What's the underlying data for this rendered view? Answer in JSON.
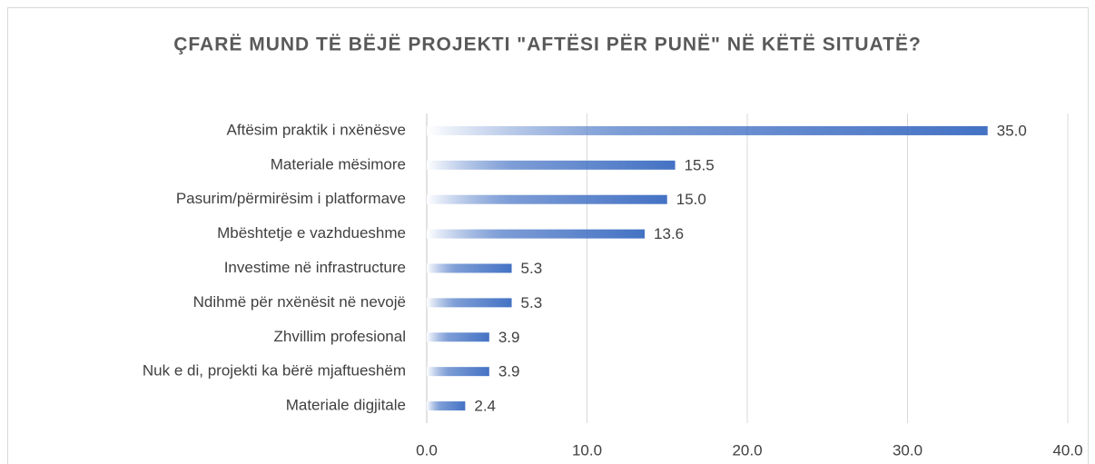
{
  "chart_data": {
    "type": "bar",
    "orientation": "horizontal",
    "title": "ÇFARË MUND TË BËJË PROJEKTI \"AFTËSI PËR PUNË\" NË KËTË SITUATË?",
    "categories": [
      "Aftësim praktik i nxënësve",
      "Materiale mësimore",
      "Pasurim/përmirësim i platformave",
      "Mbështetje e vazhdueshme",
      "Investime në infrastructure",
      "Ndihmë për nxënësit në nevojë",
      "Zhvillim profesional",
      "Nuk e di, projekti ka bërë mjaftueshëm",
      "Materiale digjitale"
    ],
    "values": [
      35.0,
      15.5,
      15.0,
      13.6,
      5.3,
      5.3,
      3.9,
      3.9,
      2.4
    ],
    "value_labels": [
      "35.0",
      "15.5",
      "15.0",
      "13.6",
      "5.3",
      "5.3",
      "3.9",
      "3.9",
      "2.4"
    ],
    "color": "#4472c4",
    "xlim": [
      0,
      40
    ],
    "xticks": [
      {
        "value": 0,
        "label": "0.0"
      },
      {
        "value": 10,
        "label": "10.0"
      },
      {
        "value": 20,
        "label": "20.0"
      },
      {
        "value": 30,
        "label": "30.0"
      },
      {
        "value": 40,
        "label": "40.0"
      }
    ],
    "grid": true
  }
}
